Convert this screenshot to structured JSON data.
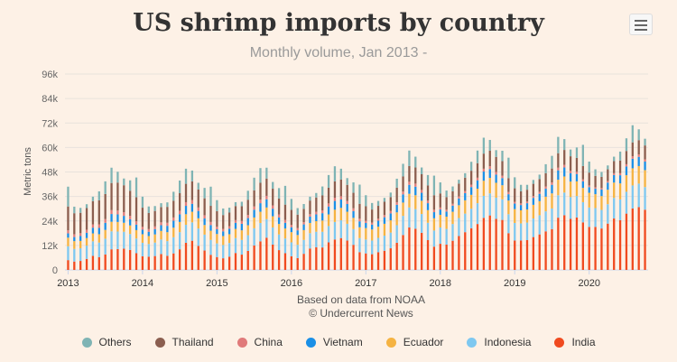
{
  "menu": {
    "icon": "hamburger-menu-icon"
  },
  "chart_data": {
    "type": "bar",
    "stacked": true,
    "title": "US shrimp imports by country",
    "subtitle": "Monthly volume, Jan 2013 -",
    "xlabel": "Based on data from NOAA",
    "credit": "© Undercurrent News",
    "ylabel": "Metric tons",
    "ylim": [
      0,
      96000
    ],
    "yticks": [
      0,
      12000,
      24000,
      36000,
      48000,
      60000,
      72000,
      84000,
      96000
    ],
    "ytick_labels": [
      "0",
      "12k",
      "24k",
      "36k",
      "48k",
      "60k",
      "72k",
      "84k",
      "96k"
    ],
    "xtick_labels": [
      "2013",
      "2014",
      "2015",
      "2016",
      "2017",
      "2018",
      "2019",
      "2020"
    ],
    "start": "2013-01",
    "months": 94,
    "legend_position": "bottom",
    "series": [
      {
        "name": "India",
        "color": "#f04a1f",
        "values": [
          4800,
          4100,
          4400,
          5400,
          6900,
          6300,
          7600,
          10100,
          10200,
          10400,
          9800,
          8200,
          6700,
          6500,
          6800,
          7800,
          6900,
          8100,
          10100,
          13300,
          14300,
          11800,
          9500,
          7400,
          6300,
          5700,
          6500,
          8300,
          7500,
          9300,
          12000,
          14000,
          15800,
          12400,
          9700,
          8200,
          6700,
          5800,
          7900,
          10500,
          11100,
          11000,
          13500,
          14900,
          15600,
          14400,
          12300,
          8700,
          8100,
          7700,
          8700,
          9400,
          10600,
          13300,
          17100,
          20800,
          20200,
          18200,
          14600,
          11400,
          12800,
          12400,
          14300,
          16600,
          18500,
          20400,
          22500,
          25500,
          26700,
          25000,
          24500,
          18000,
          14400,
          14400,
          14600,
          16100,
          17400,
          18900,
          20000,
          25600,
          26800,
          25000,
          25700,
          23300,
          21100,
          21100,
          20300,
          22700,
          25200,
          24400,
          27600,
          30100,
          30800,
          29500
        ]
      },
      {
        "name": "Indonesia",
        "color": "#7ec8f0",
        "values": [
          6800,
          6200,
          6200,
          6500,
          7100,
          7100,
          7700,
          8800,
          8600,
          8300,
          7800,
          7200,
          6600,
          6200,
          6600,
          7100,
          7200,
          7900,
          8400,
          8800,
          9000,
          8500,
          7800,
          7300,
          6700,
          6500,
          6700,
          7300,
          7200,
          7700,
          8400,
          9000,
          9100,
          8400,
          7700,
          7200,
          6800,
          6500,
          6800,
          7500,
          7600,
          7700,
          8000,
          8600,
          8700,
          8200,
          7700,
          6900,
          6800,
          6700,
          7000,
          7400,
          7700,
          8600,
          9400,
          9800,
          9600,
          9200,
          8500,
          7900,
          8000,
          7700,
          8200,
          8800,
          9100,
          9600,
          10200,
          10800,
          10800,
          10400,
          10100,
          9300,
          8600,
          8400,
          8600,
          9100,
          9400,
          9800,
          10100,
          11000,
          11100,
          10700,
          10500,
          9900,
          9500,
          9200,
          9100,
          9500,
          10100,
          10200,
          10700,
          11300,
          11500,
          11100
        ]
      },
      {
        "name": "Ecuador",
        "color": "#f5b342",
        "values": [
          4200,
          3800,
          3600,
          3700,
          3900,
          4100,
          4300,
          4700,
          4700,
          4400,
          4200,
          4100,
          4200,
          3900,
          4000,
          4200,
          4400,
          4700,
          5000,
          5200,
          5200,
          5000,
          4700,
          4500,
          4600,
          4400,
          4300,
          4500,
          4700,
          4900,
          5300,
          5500,
          5700,
          5500,
          5100,
          4900,
          5000,
          4800,
          4800,
          5000,
          5200,
          5500,
          5700,
          6000,
          6100,
          5900,
          5500,
          5300,
          5600,
          5400,
          5500,
          5800,
          6000,
          6300,
          6500,
          6700,
          6800,
          6500,
          6200,
          6000,
          6200,
          6000,
          6000,
          6300,
          6500,
          6800,
          7100,
          7400,
          7600,
          7300,
          6900,
          6700,
          6800,
          6400,
          6400,
          6700,
          6900,
          7200,
          7400,
          7600,
          7900,
          7600,
          7200,
          7000,
          7200,
          6800,
          6800,
          7100,
          7500,
          7800,
          8100,
          8400,
          8600,
          8300
        ]
      },
      {
        "name": "Vietnam",
        "color": "#1a8fe6",
        "values": [
          2100,
          2000,
          2400,
          2600,
          2800,
          3100,
          3500,
          3800,
          3700,
          3400,
          3000,
          2700,
          2200,
          2100,
          2600,
          2800,
          3100,
          3400,
          3800,
          4100,
          3900,
          3600,
          3200,
          2800,
          2300,
          2300,
          2700,
          3000,
          3200,
          3500,
          3800,
          4200,
          4000,
          3700,
          3200,
          2800,
          2400,
          2300,
          2800,
          3100,
          3300,
          3600,
          3900,
          4300,
          4100,
          3800,
          3300,
          2900,
          2500,
          2400,
          2900,
          3200,
          3400,
          3700,
          4000,
          4400,
          4200,
          3900,
          3400,
          3000,
          2600,
          2500,
          3000,
          3300,
          3500,
          3800,
          4100,
          4500,
          4300,
          4000,
          3500,
          3100,
          2700,
          2600,
          3100,
          3400,
          3600,
          3900,
          4200,
          4600,
          4400,
          4100,
          3600,
          3200,
          2800,
          2700,
          3200,
          3500,
          3700,
          4000,
          4300,
          4700,
          4500,
          4200
        ]
      },
      {
        "name": "China",
        "color": "#e07a7a",
        "values": [
          1500,
          1400,
          1400,
          1500,
          1600,
          1700,
          1800,
          1900,
          1900,
          1800,
          1700,
          1600,
          1400,
          1300,
          1300,
          1400,
          1500,
          1600,
          1700,
          1800,
          1800,
          1700,
          1600,
          1500,
          1300,
          1200,
          1200,
          1300,
          1400,
          1500,
          1600,
          1700,
          1700,
          1600,
          1500,
          1400,
          1200,
          1100,
          1100,
          1200,
          1300,
          1400,
          1500,
          1600,
          1600,
          1500,
          1400,
          1300,
          1100,
          1000,
          1000,
          1100,
          1200,
          1300,
          1400,
          1500,
          1500,
          1400,
          1300,
          1200,
          1000,
          900,
          900,
          1000,
          1100,
          1200,
          1300,
          1400,
          1400,
          1300,
          1200,
          1100,
          900,
          800,
          800,
          900,
          1000,
          1100,
          1200,
          1300,
          1300,
          1200,
          1100,
          1000,
          800,
          700,
          700,
          800,
          900,
          1000,
          1100,
          1200,
          1200,
          1100
        ]
      },
      {
        "name": "Thailand",
        "color": "#8b5e4f",
        "values": [
          11700,
          10300,
          10000,
          10600,
          11400,
          11800,
          12300,
          13300,
          13700,
          13200,
          12300,
          11800,
          9400,
          7900,
          7600,
          7500,
          7800,
          8200,
          8600,
          9000,
          9200,
          8800,
          8300,
          7900,
          7600,
          6800,
          6700,
          6900,
          7200,
          7500,
          7900,
          8300,
          8500,
          8200,
          7800,
          7500,
          7300,
          6600,
          6500,
          6700,
          7000,
          7300,
          7700,
          8000,
          8200,
          7900,
          7600,
          7300,
          7100,
          6400,
          6300,
          6500,
          6800,
          7100,
          7400,
          7700,
          7900,
          7700,
          7400,
          7100,
          6900,
          6200,
          6100,
          6300,
          6500,
          6800,
          7100,
          7400,
          7600,
          7400,
          7100,
          6800,
          6600,
          5900,
          5800,
          6000,
          6200,
          6500,
          6800,
          7100,
          7300,
          7100,
          6800,
          6500,
          6300,
          5600,
          5500,
          5700,
          5900,
          6200,
          6500,
          6800,
          7000,
          6800
        ]
      },
      {
        "name": "Others",
        "color": "#7fb4b4",
        "values": [
          9700,
          3200,
          2400,
          1900,
          2200,
          4400,
          6200,
          7500,
          5300,
          3300,
          5100,
          9700,
          5400,
          3200,
          2400,
          1900,
          2200,
          4400,
          6200,
          7400,
          5300,
          3300,
          5100,
          9400,
          5400,
          3200,
          2400,
          1900,
          2200,
          4400,
          6200,
          7200,
          5300,
          3300,
          5100,
          9200,
          5400,
          3200,
          2400,
          1900,
          2200,
          4400,
          6200,
          7400,
          5300,
          3300,
          5100,
          9400,
          5400,
          3200,
          2400,
          1900,
          2200,
          4400,
          6200,
          7600,
          5300,
          3300,
          5100,
          9600,
          5400,
          3200,
          2400,
          1900,
          2200,
          4400,
          6200,
          7800,
          5300,
          3300,
          5100,
          10000,
          5400,
          3200,
          2400,
          1900,
          2200,
          4400,
          6200,
          8000,
          5300,
          3300,
          5100,
          10400,
          5400,
          3200,
          2400,
          1900,
          2200,
          4400,
          6200,
          8400,
          5300,
          3300
        ]
      }
    ]
  }
}
